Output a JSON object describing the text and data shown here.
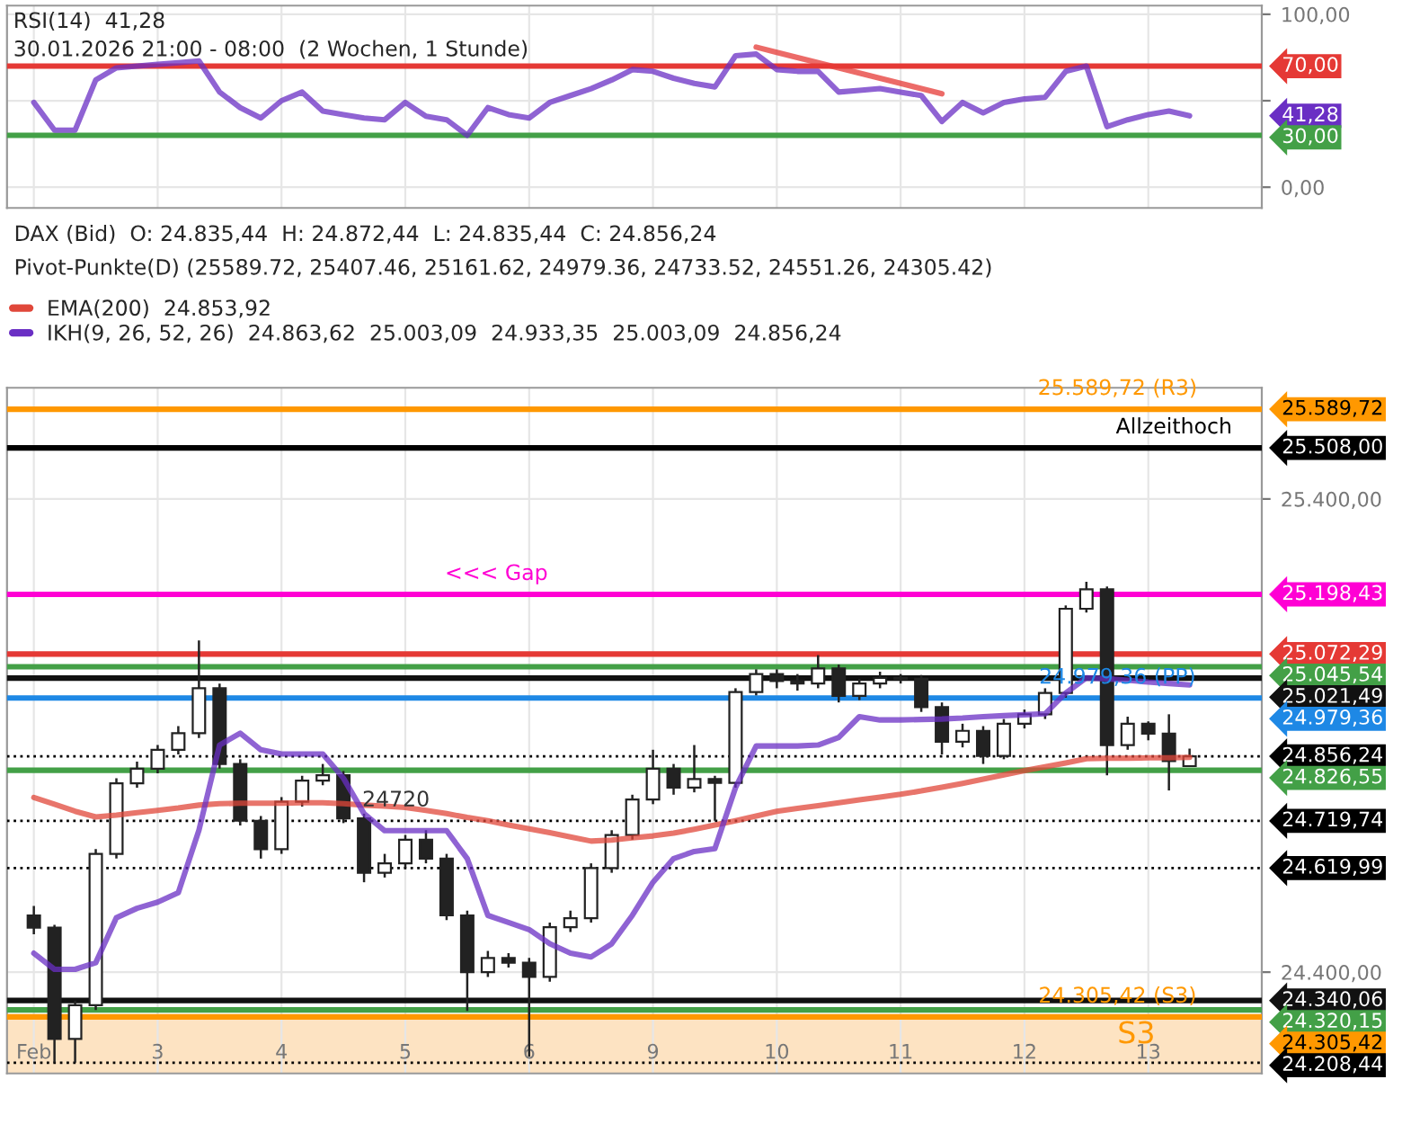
{
  "chart_data": [
    {
      "type": "line",
      "title": "RSI(14)  41,28",
      "subtitle": "30.01.2026 21:00 - 08:00  (2 Wochen, 1 Stunde)",
      "categories": [
        null,
        null,
        null,
        null,
        null,
        null,
        null,
        null,
        null,
        null,
        null,
        null,
        null,
        null,
        null,
        null,
        null,
        null,
        null,
        null,
        null,
        null,
        null,
        null,
        null,
        null,
        null,
        null,
        null,
        null,
        null,
        null,
        null,
        null,
        null,
        null,
        null,
        null,
        null,
        null,
        null,
        null,
        null,
        null,
        null,
        null,
        null,
        null,
        null,
        null,
        null,
        null,
        null,
        null,
        null,
        null,
        null,
        null,
        null,
        null
      ],
      "ylim": [
        -12,
        105
      ],
      "yticks": [
        {
          "value": 0,
          "label": "0,00"
        },
        {
          "value": 50,
          "label": null
        },
        {
          "value": 100,
          "label": "100,00"
        }
      ],
      "tick_labels": "y",
      "grid": true,
      "legend": false,
      "line_style": "solid",
      "marker": "none",
      "series": [
        {
          "color": "#6a2fc4",
          "values": [
            49,
            33,
            33,
            62,
            69,
            70,
            71,
            72,
            73,
            55,
            46,
            40,
            50,
            55,
            44,
            42,
            40,
            39,
            49,
            41,
            39,
            30,
            46,
            42,
            40,
            49,
            53,
            57,
            62,
            68,
            67,
            63,
            60,
            58,
            76,
            77,
            68,
            67,
            67,
            55,
            56,
            57,
            55,
            53,
            38,
            49,
            43,
            49,
            51,
            52,
            67,
            70,
            35,
            39,
            42,
            44,
            41.28,
            null,
            null,
            null
          ]
        },
        {
          "color": "#e53935",
          "values": [
            null,
            null,
            null,
            null,
            null,
            null,
            null,
            null,
            null,
            null,
            null,
            null,
            null,
            null,
            null,
            null,
            null,
            null,
            null,
            null,
            null,
            null,
            null,
            null,
            null,
            null,
            null,
            null,
            null,
            null,
            null,
            null,
            null,
            null,
            null,
            81,
            78,
            75,
            72,
            69,
            66,
            63,
            60,
            57,
            54,
            null,
            null,
            null,
            null,
            null,
            null,
            null,
            null,
            null,
            null,
            null,
            null,
            null,
            null,
            null
          ]
        }
      ],
      "ref_lines": [
        {
          "axis": "y",
          "value": 70,
          "label": "70,00",
          "color": "#e53935"
        },
        {
          "axis": "y",
          "value": 30,
          "label": "30,00",
          "color": "#43a047"
        }
      ],
      "annotations": [
        "41,28"
      ]
    },
    {
      "type": "candlestick",
      "title": "DAX (Bid)  O: 24.835,44  H: 24.872,44  L: 24.835,44  C: 24.856,24",
      "subtitle": "Pivot-Punkte(D) (25589.72, 25407.46, 25161.62, 24979.36, 24733.52, 24551.26, 24305.42)",
      "categories": [
        "Feb",
        null,
        null,
        null,
        null,
        null,
        "3",
        null,
        null,
        null,
        null,
        null,
        "4",
        null,
        null,
        null,
        null,
        null,
        "5",
        null,
        null,
        null,
        null,
        null,
        "6",
        null,
        null,
        null,
        null,
        null,
        "9",
        null,
        null,
        null,
        null,
        null,
        "10",
        null,
        null,
        null,
        null,
        null,
        "11",
        null,
        null,
        null,
        null,
        null,
        "12",
        null,
        null,
        null,
        null,
        null,
        "13",
        null,
        null,
        null,
        null,
        null
      ],
      "ylim": [
        24186,
        25635
      ],
      "yticks": [
        {
          "value": 24400,
          "label": "24.400,00"
        },
        {
          "value": 25400,
          "label": "25.400,00"
        }
      ],
      "grid": true,
      "legend": "top left",
      "line_style": "solid",
      "marker": "none",
      "ohlc": [
        [
          24520,
          24540,
          24480,
          24494
        ],
        [
          24494,
          24500,
          24209,
          24259
        ],
        [
          24259,
          24340,
          24209,
          24330
        ],
        [
          24330,
          24660,
          24320,
          24650
        ],
        [
          24650,
          24810,
          24640,
          24799
        ],
        [
          24799,
          24845,
          24790,
          24830
        ],
        [
          24830,
          24880,
          24820,
          24870
        ],
        [
          24870,
          24920,
          24860,
          24905
        ],
        [
          24905,
          25101,
          24895,
          25000
        ],
        [
          25000,
          25010,
          24830,
          24840
        ],
        [
          24840,
          24850,
          24710,
          24720
        ],
        [
          24720,
          24730,
          24640,
          24660
        ],
        [
          24660,
          24770,
          24650,
          24760
        ],
        [
          24760,
          24815,
          24750,
          24805
        ],
        [
          24805,
          24840,
          24795,
          24816
        ],
        [
          24816,
          24825,
          24715,
          24725
        ],
        [
          24725,
          24735,
          24590,
          24610
        ],
        [
          24610,
          24650,
          24600,
          24630
        ],
        [
          24630,
          24690,
          24620,
          24680
        ],
        [
          24680,
          24700,
          24630,
          24640
        ],
        [
          24640,
          24650,
          24510,
          24520
        ],
        [
          24520,
          24530,
          24318,
          24400
        ],
        [
          24400,
          24445,
          24390,
          24430
        ],
        [
          24430,
          24440,
          24410,
          24420
        ],
        [
          24420,
          24430,
          24221,
          24390
        ],
        [
          24390,
          24505,
          24380,
          24495
        ],
        [
          24495,
          24530,
          24485,
          24514
        ],
        [
          24514,
          24630,
          24505,
          24620
        ],
        [
          24620,
          24700,
          24610,
          24690
        ],
        [
          24690,
          24775,
          24680,
          24765
        ],
        [
          24765,
          24870,
          24755,
          24830
        ],
        [
          24830,
          24840,
          24775,
          24790
        ],
        [
          24790,
          24880,
          24780,
          24808
        ],
        [
          24808,
          24815,
          24720,
          24800
        ],
        [
          24800,
          25000,
          24790,
          24992
        ],
        [
          24992,
          25040,
          24985,
          25030
        ],
        [
          25030,
          25040,
          25000,
          25015
        ],
        [
          25015,
          25030,
          24995,
          25010
        ],
        [
          25010,
          25070,
          25000,
          25042
        ],
        [
          25042,
          25050,
          24970,
          24984
        ],
        [
          24984,
          25020,
          24975,
          25010
        ],
        [
          25010,
          25035,
          25000,
          25022
        ],
        [
          25022,
          25030,
          25010,
          25020
        ],
        [
          25020,
          25028,
          24950,
          24960
        ],
        [
          24960,
          24970,
          24860,
          24887
        ],
        [
          24887,
          24925,
          24875,
          24910
        ],
        [
          24910,
          24920,
          24840,
          24857
        ],
        [
          24857,
          24935,
          24850,
          24925
        ],
        [
          24925,
          24955,
          24915,
          24945
        ],
        [
          24945,
          25000,
          24935,
          24990
        ],
        [
          24990,
          25175,
          24980,
          25168
        ],
        [
          25168,
          25225,
          25160,
          25209
        ],
        [
          25209,
          25215,
          24816,
          24880
        ],
        [
          24880,
          24940,
          24870,
          24925
        ],
        [
          24925,
          24930,
          24890,
          24904
        ],
        [
          24904,
          24945,
          24784,
          24846
        ],
        [
          24835.44,
          24872.44,
          24835.44,
          24856.24
        ],
        null,
        null,
        null
      ],
      "series": [
        {
          "type": "line",
          "name": "EMA(200)  24.853,92",
          "color": "#e0473a",
          "values": [
            24769,
            24755,
            24740,
            24728,
            24732,
            24737,
            24742,
            24747,
            24753,
            24756,
            24757,
            24757,
            24757,
            24758,
            24758,
            24756,
            24753,
            24751,
            24748,
            24742,
            24735,
            24727,
            24720,
            24711,
            24703,
            24695,
            24686,
            24677,
            24679,
            24684,
            24688,
            24694,
            24702,
            24711,
            24720,
            24730,
            24740,
            24746,
            24752,
            24758,
            24764,
            24770,
            24776,
            24783,
            24791,
            24799,
            24808,
            24817,
            24826,
            24834,
            24842,
            24851,
            24852,
            24852,
            24853,
            24853,
            24854,
            null,
            null,
            null
          ]
        },
        {
          "type": "line",
          "name": "IKH(9, 26, 52, 26)  24.863,62  25.003,09  24.933,35  25.003,09  24.856,24",
          "color": "#6a2fc4",
          "values": [
            24440,
            24406,
            24406,
            24420,
            24515,
            24535,
            24548,
            24568,
            24700,
            24880,
            24905,
            24870,
            24861,
            24861,
            24861,
            24810,
            24735,
            24699,
            24699,
            24699,
            24699,
            24640,
            24520,
            24505,
            24490,
            24460,
            24440,
            24432,
            24460,
            24520,
            24590,
            24640,
            24655,
            24661,
            24790,
            24878,
            24878,
            24878,
            24880,
            24896,
            24940,
            24933,
            24933,
            24934,
            24935,
            24937,
            24940,
            24942,
            24944,
            24946,
            24990,
            25022,
            25020,
            25017,
            25013,
            25010,
            25007,
            null,
            null,
            null
          ]
        }
      ],
      "ref_lines": [
        {
          "axis": "y",
          "value": 25589.72,
          "label": "25.589,72",
          "color": "#ff9800"
        },
        {
          "axis": "y",
          "value": 25508,
          "label": "25.508,00",
          "color": "#000000"
        },
        {
          "axis": "y",
          "value": 25198.43,
          "label": "25.198,43",
          "color": "#ff00d4"
        },
        {
          "axis": "y",
          "value": 25072.29,
          "label": "25.072,29",
          "color": "#e53935"
        },
        {
          "axis": "y",
          "value": 25045.54,
          "label": "25.045,54",
          "color": "#43a047"
        },
        {
          "axis": "y",
          "value": 25021.49,
          "label": "25.021,49",
          "color": "#111111"
        },
        {
          "axis": "y",
          "value": 24979.36,
          "label": "24.979,36",
          "color": "#1e88e5"
        },
        {
          "axis": "y",
          "value": 24856.24,
          "label": "24.856,24",
          "color": "#000000",
          "line_style": "dotted"
        },
        {
          "axis": "y",
          "value": 24826.55,
          "label": "24.826,55",
          "color": "#43a047"
        },
        {
          "axis": "y",
          "value": 24719.74,
          "label": "24.719,74",
          "color": "#000000",
          "line_style": "dotted"
        },
        {
          "axis": "y",
          "value": 24619.99,
          "label": "24.619,99",
          "color": "#000000",
          "line_style": "dotted"
        },
        {
          "axis": "y",
          "value": 24340.06,
          "label": "24.340,06",
          "color": "#111111"
        },
        {
          "axis": "y",
          "value": 24320.15,
          "label": "24.320,15",
          "color": "#43a047"
        },
        {
          "axis": "y",
          "value": 24305.42,
          "label": "24.305,42",
          "color": "#ff9800"
        },
        {
          "axis": "y",
          "value": 24208.44,
          "label": "24.208,44",
          "color": "#000000",
          "line_style": "dotted"
        }
      ],
      "bands": [
        {
          "axis": "y",
          "from": 24186,
          "to": 24305.42,
          "color": "#fde3c2"
        }
      ],
      "annotations": [
        {
          "text": "Allzeithoch",
          "y": 25508
        },
        {
          "text": "<<< Gap",
          "y": 25198.43
        },
        {
          "text": "24720",
          "y": 24720
        },
        {
          "text": "24.979,36 (PP)",
          "y": 24979.36
        },
        {
          "text": "25.589,72 (R3)",
          "y": 25589.72
        },
        {
          "text": "24.305,42 (S3)",
          "y": 24305.42
        },
        "S3"
      ]
    }
  ]
}
